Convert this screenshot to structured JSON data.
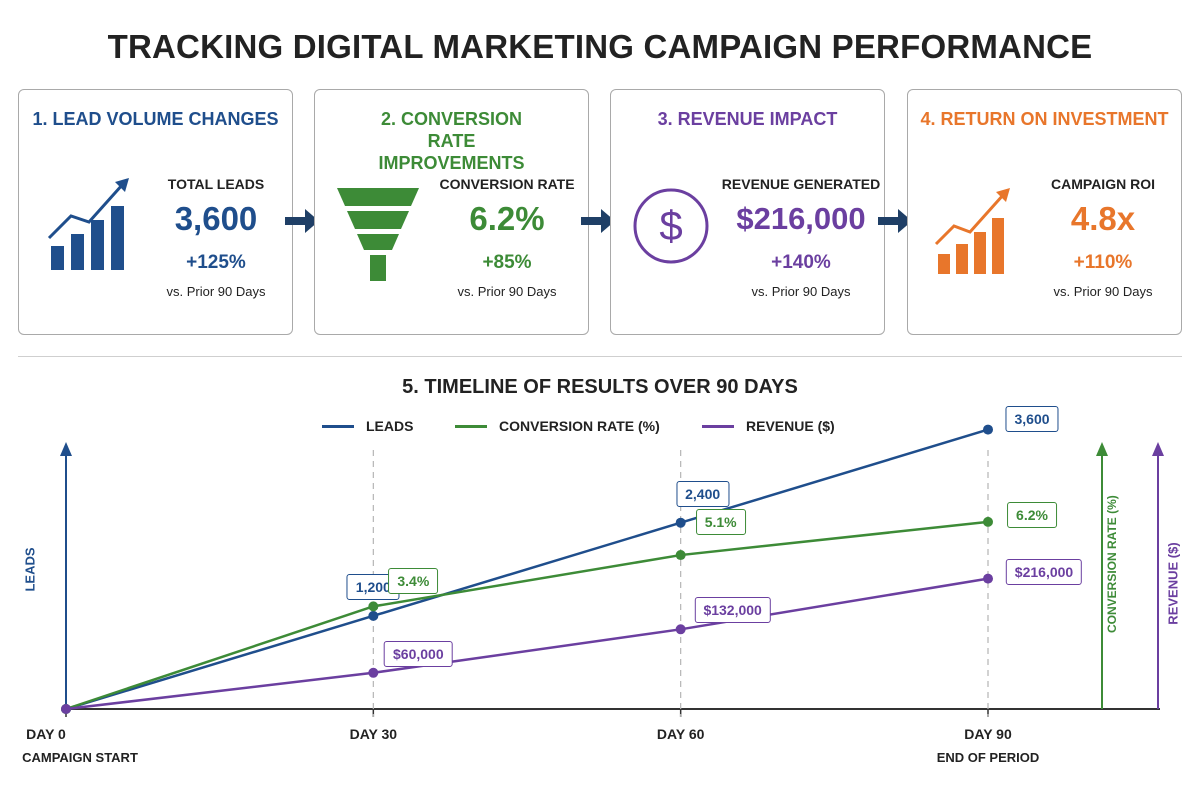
{
  "title": "TRACKING DIGITAL MARKETING CAMPAIGN PERFORMANCE",
  "cards": [
    {
      "title": "1. LEAD VOLUME CHANGES",
      "label": "TOTAL LEADS",
      "value": "3,600",
      "change": "+125%",
      "compare": "vs. Prior 90 Days",
      "color": "#1f4e8c",
      "icon": "bar-growth-icon"
    },
    {
      "title": "2. CONVERSION RATE IMPROVEMENTS",
      "label": "CONVERSION RATE",
      "value": "6.2%",
      "change": "+85%",
      "compare": "vs. Prior 90 Days",
      "color": "#3d8b37",
      "icon": "funnel-icon"
    },
    {
      "title": "3. REVENUE IMPACT",
      "label": "REVENUE GENERATED",
      "value": "$216,000",
      "change": "+140%",
      "compare": "vs. Prior 90 Days",
      "color": "#6b3fa0",
      "icon": "dollar-icon"
    },
    {
      "title": "4. RETURN ON INVESTMENT",
      "label": "CAMPAIGN ROI",
      "value": "4.8x",
      "change": "+110%",
      "compare": "vs. Prior 90 Days",
      "color": "#e8762b",
      "icon": "bar-growth-icon"
    }
  ],
  "timeline": {
    "title": "5. TIMELINE OF RESULTS OVER 90 DAYS",
    "y_axis_left": "LEADS",
    "y_axis_right_1": "CONVERSION RATE (%)",
    "y_axis_right_2": "REVENUE ($)"
  },
  "chart_data": {
    "type": "line",
    "title": "5. TIMELINE OF RESULTS OVER 90 DAYS",
    "x": [
      0,
      30,
      60,
      90
    ],
    "x_tick_labels": [
      "DAY 0",
      "DAY 30",
      "DAY 60",
      "DAY 90"
    ],
    "x_sub_labels": [
      "CAMPAIGN START",
      "",
      "",
      "END OF PERIOD"
    ],
    "series": [
      {
        "name": "LEADS",
        "color": "#1f4e8c",
        "values": [
          0,
          1200,
          2400,
          3600
        ],
        "labels": [
          "",
          "1,200",
          "2,400",
          "3,600"
        ],
        "ylim": [
          0,
          4200
        ]
      },
      {
        "name": "CONVERSION RATE (%)",
        "color": "#3d8b37",
        "values": [
          0,
          3.4,
          5.1,
          6.2
        ],
        "labels": [
          "",
          "3.4%",
          "5.1%",
          "6.2%"
        ],
        "ylim": [
          0,
          10.8
        ]
      },
      {
        "name": "REVENUE ($)",
        "color": "#6b3fa0",
        "values": [
          0,
          60000,
          132000,
          216000
        ],
        "labels": [
          "",
          "$60,000",
          "$132,000",
          "$216,000"
        ],
        "ylim": [
          0,
          540000
        ]
      }
    ],
    "legend_position": "top-center",
    "grid": "vertical dashed at ticks"
  }
}
